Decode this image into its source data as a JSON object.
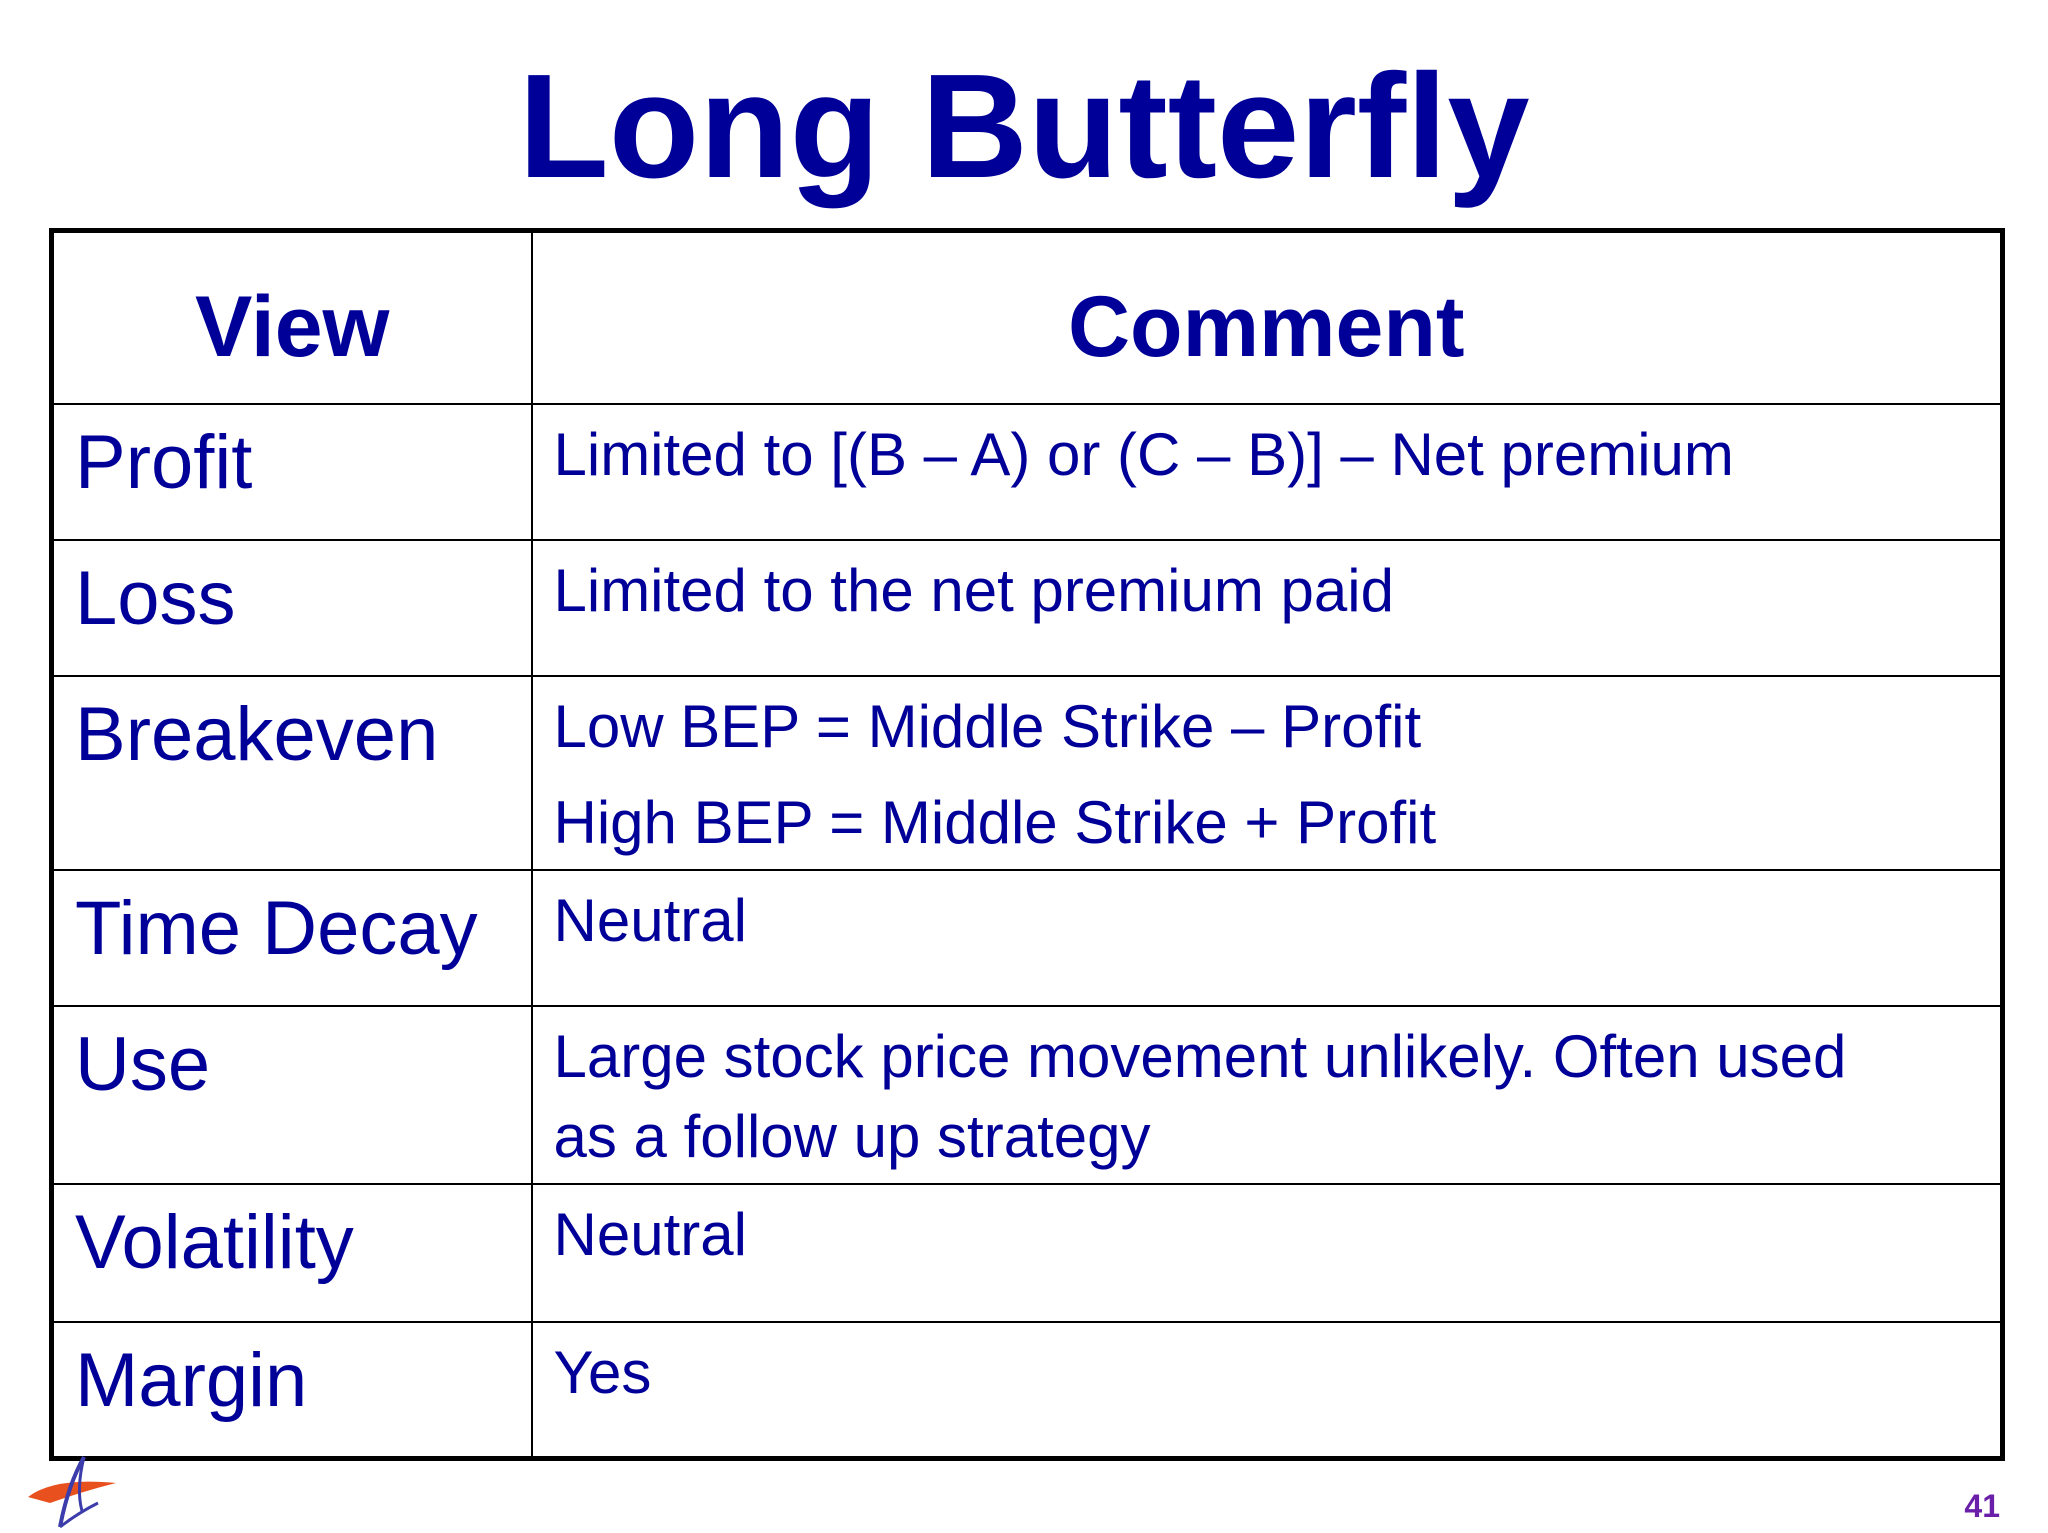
{
  "title": "Long Butterfly",
  "table": {
    "headers": [
      "View",
      "Comment"
    ],
    "rows": [
      {
        "view": "Profit",
        "comment": [
          "Limited to [(B – A) or (C – B)] – Net premium"
        ]
      },
      {
        "view": "Loss",
        "comment": [
          "Limited to the net premium paid"
        ]
      },
      {
        "view": "Breakeven",
        "comment": [
          "Low BEP = Middle Strike – Profit",
          "High BEP = Middle Strike + Profit"
        ]
      },
      {
        "view": "Time Decay",
        "comment": [
          "Neutral"
        ]
      },
      {
        "view": "Use",
        "comment": [
          "Large stock price movement unlikely. Often used",
          "as a follow up strategy"
        ]
      },
      {
        "view": "Volatility",
        "comment": [
          "Neutral"
        ]
      },
      {
        "view": "Margin",
        "comment": [
          "Yes"
        ]
      }
    ]
  },
  "footer": {
    "logo_icon": "logo-icon",
    "page_number": "41"
  },
  "colors": {
    "text": "#000099",
    "page_number": "#6a1fa8",
    "logo_orange": "#e8501e",
    "logo_blue": "#3c3caa"
  }
}
